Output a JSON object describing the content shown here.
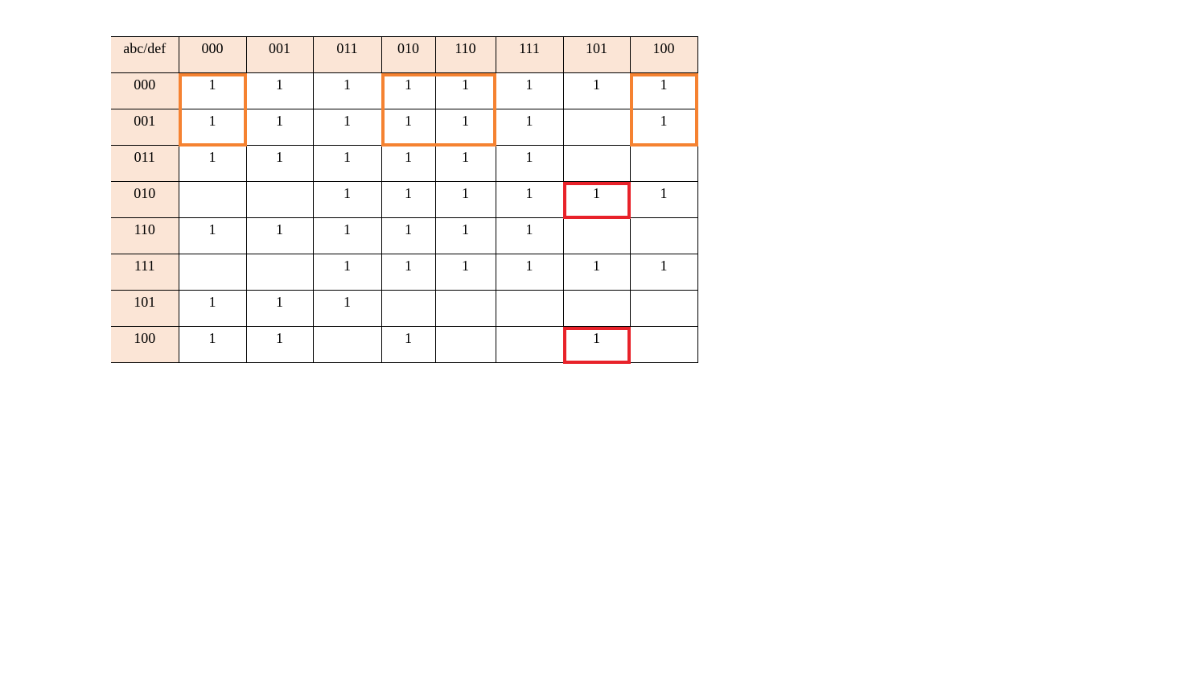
{
  "kmap": {
    "corner_label": "abc/def",
    "column_headers": [
      "000",
      "001",
      "011",
      "010",
      "110",
      "111",
      "101",
      "100"
    ],
    "row_headers": [
      "000",
      "001",
      "011",
      "010",
      "110",
      "111",
      "101",
      "100"
    ],
    "cells": [
      [
        "1",
        "1",
        "1",
        "1",
        "1",
        "1",
        "1",
        "1"
      ],
      [
        "1",
        "1",
        "1",
        "1",
        "1",
        "1",
        "",
        "1"
      ],
      [
        "1",
        "1",
        "1",
        "1",
        "1",
        "1",
        "",
        ""
      ],
      [
        "",
        "",
        "1",
        "1",
        "1",
        "1",
        "1",
        "1"
      ],
      [
        "1",
        "1",
        "1",
        "1",
        "1",
        "1",
        "",
        ""
      ],
      [
        "",
        "",
        "1",
        "1",
        "1",
        "1",
        "1",
        "1"
      ],
      [
        "1",
        "1",
        "1",
        "",
        "",
        "",
        "",
        ""
      ],
      [
        "1",
        "1",
        "",
        "1",
        "",
        "",
        "1",
        ""
      ]
    ],
    "header_background": "#fbe5d6",
    "groupings": [
      {
        "color": "#f58231",
        "rows": [
          "000",
          "001"
        ],
        "columns": [
          "000"
        ]
      },
      {
        "color": "#f58231",
        "rows": [
          "000",
          "001"
        ],
        "columns": [
          "010",
          "110"
        ]
      },
      {
        "color": "#f58231",
        "rows": [
          "000",
          "001"
        ],
        "columns": [
          "100"
        ]
      },
      {
        "color": "#e8222a",
        "rows": [
          "010"
        ],
        "columns": [
          "101"
        ]
      },
      {
        "color": "#e8222a",
        "rows": [
          "100"
        ],
        "columns": [
          "101"
        ]
      }
    ]
  }
}
